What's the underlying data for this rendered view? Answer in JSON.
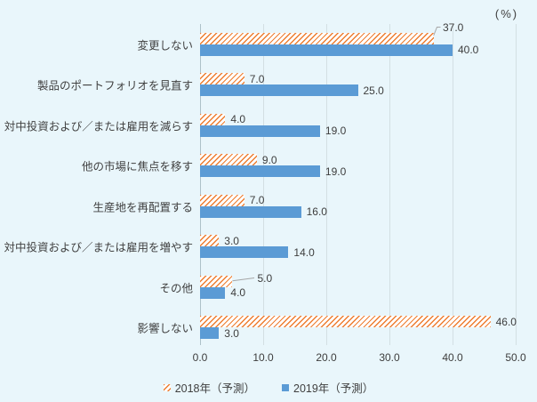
{
  "chart": {
    "percent_label": "(%)",
    "colors": {
      "background": "#e9f6fb",
      "bar_2018": "#ed7d31",
      "bar_2019": "#5b9bd5",
      "gridline": "#d3dfe3",
      "axis_line": "#aec1c9",
      "text": "#404040",
      "leader_line": "#a6a6a6"
    }
  },
  "chart_data": {
    "type": "bar",
    "orientation": "horizontal",
    "title": "",
    "unit_label": "(%)",
    "categories": [
      "変更しない",
      "製品のポートフォリオを見直す",
      "対中投資および／または雇用を減らす",
      "他の市場に焦点を移す",
      "生産地を再配置する",
      "対中投資および／または雇用を増やす",
      "その他",
      "影響しない"
    ],
    "series": [
      {
        "name": "2018年（予測）",
        "fill": "hatched",
        "color": "#ed7d31",
        "values": [
          37.0,
          7.0,
          4.0,
          9.0,
          7.0,
          3.0,
          5.0,
          46.0
        ]
      },
      {
        "name": "2019年（予測）",
        "fill": "solid",
        "color": "#5b9bd5",
        "values": [
          40.0,
          25.0,
          19.0,
          19.0,
          16.0,
          14.0,
          4.0,
          3.0
        ]
      }
    ],
    "xlim": [
      0,
      50
    ],
    "xticks": [
      "0.0",
      "10.0",
      "20.0",
      "30.0",
      "40.0",
      "50.0"
    ],
    "grid": true,
    "legend_position": "bottom",
    "value_label_format": "one_decimal",
    "callouts": [
      {
        "series": 0,
        "row": 0
      },
      {
        "series": 0,
        "row": 6
      }
    ]
  }
}
